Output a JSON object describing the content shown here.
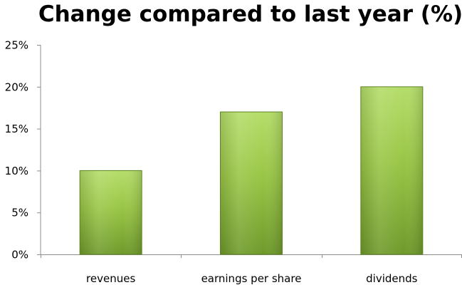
{
  "chart_data": {
    "type": "bar",
    "title": "Change compared to last year (%)",
    "xlabel": "",
    "ylabel": "",
    "categories": [
      "revenues",
      "earnings per share",
      "dividends"
    ],
    "values": [
      10,
      17,
      20
    ],
    "ylim": [
      0,
      25
    ],
    "yticks": [
      0,
      5,
      10,
      15,
      20,
      25
    ],
    "ytick_labels": [
      "0%",
      "5%",
      "10%",
      "15%",
      "20%",
      "25%"
    ],
    "grid": false,
    "legend": "none",
    "bar_color_top": "#b5dd6a",
    "bar_color_bottom": "#6f9a2b",
    "bar_edge_color": "#5d8420"
  }
}
